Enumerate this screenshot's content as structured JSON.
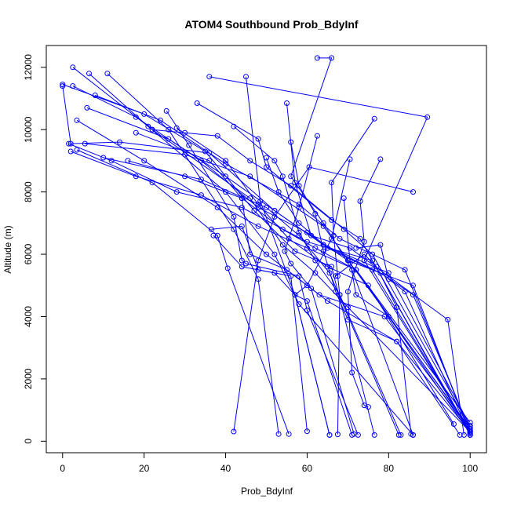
{
  "chart_data": {
    "type": "line",
    "title": "ATOM4 Southbound Prob_BdyInf",
    "xlabel": "Prob_BdyInf",
    "ylabel": "Altitude (m)",
    "xlim": [
      -4,
      104
    ],
    "ylim": [
      -370,
      12700
    ],
    "xticks": [
      0,
      20,
      40,
      60,
      80,
      100
    ],
    "yticks": [
      0,
      2000,
      4000,
      6000,
      8000,
      10000,
      12000
    ],
    "grid": false,
    "colors": {
      "series": "#0000ff",
      "axis": "#000000"
    },
    "series": [
      {
        "values": [
          [
            0,
            11400
          ],
          [
            2,
            9550
          ],
          [
            14,
            9600
          ],
          [
            36,
            9250
          ],
          [
            52,
            7400
          ],
          [
            64,
            6300
          ],
          [
            78,
            5400
          ],
          [
            86,
            4700
          ],
          [
            100,
            350
          ]
        ]
      },
      {
        "values": [
          [
            2.5,
            12000
          ],
          [
            22,
            10000
          ],
          [
            46,
            7800
          ],
          [
            54,
            6300
          ],
          [
            62,
            5400
          ],
          [
            70,
            4300
          ],
          [
            100,
            300
          ]
        ]
      },
      {
        "values": [
          [
            6.5,
            11800
          ],
          [
            21,
            10100
          ],
          [
            40,
            8000
          ],
          [
            52,
            6000
          ],
          [
            58,
            4400
          ],
          [
            86,
            200
          ]
        ]
      },
      {
        "values": [
          [
            11,
            11800
          ],
          [
            26,
            10000
          ],
          [
            42,
            6800
          ],
          [
            48,
            5200
          ],
          [
            53,
            230
          ]
        ]
      },
      {
        "values": [
          [
            3.5,
            10300
          ],
          [
            20,
            9000
          ],
          [
            38,
            7500
          ],
          [
            50,
            6000
          ],
          [
            65,
            4500
          ],
          [
            82,
            3200
          ],
          [
            100,
            300
          ]
        ]
      },
      {
        "values": [
          [
            1.5,
            9550
          ],
          [
            12,
            9000
          ],
          [
            28,
            8000
          ],
          [
            44,
            7500
          ],
          [
            60,
            6400
          ],
          [
            76,
            5800
          ],
          [
            100,
            250
          ]
        ]
      },
      {
        "values": [
          [
            2,
            9300
          ],
          [
            18,
            8500
          ],
          [
            34,
            7900
          ],
          [
            48,
            6900
          ],
          [
            60,
            6200
          ],
          [
            72,
            5500
          ],
          [
            99,
            550
          ]
        ]
      },
      {
        "values": [
          [
            3.5,
            9350
          ],
          [
            22,
            8300
          ],
          [
            38,
            6600
          ],
          [
            40.5,
            5550
          ],
          [
            55.5,
            230
          ]
        ]
      },
      {
        "values": [
          [
            10,
            9100
          ],
          [
            34,
            8400
          ],
          [
            50,
            7500
          ],
          [
            58,
            6600
          ],
          [
            65.5,
            5400
          ],
          [
            82.5,
            200
          ]
        ]
      },
      {
        "values": [
          [
            5.5,
            9550
          ],
          [
            30,
            9200
          ],
          [
            46,
            8500
          ],
          [
            64,
            6900
          ],
          [
            100,
            400
          ]
        ]
      },
      {
        "values": [
          [
            0,
            11450
          ],
          [
            20,
            10500
          ],
          [
            35,
            9300
          ],
          [
            47,
            7400
          ],
          [
            57,
            6100
          ],
          [
            66,
            5600
          ],
          [
            76.5,
            200
          ]
        ]
      },
      {
        "values": [
          [
            36,
            11700
          ],
          [
            89.5,
            10400
          ],
          [
            74,
            5800
          ],
          [
            100,
            300
          ]
        ]
      },
      {
        "values": [
          [
            45,
            11700
          ],
          [
            48.5,
            7700
          ],
          [
            57,
            4700
          ],
          [
            65.5,
            200
          ]
        ]
      },
      {
        "values": [
          [
            62.5,
            12300
          ],
          [
            66,
            12300
          ],
          [
            56,
            8500
          ],
          [
            64,
            7000
          ],
          [
            71,
            5500
          ],
          [
            86,
            200
          ]
        ]
      },
      {
        "values": [
          [
            25.5,
            10600
          ],
          [
            31,
            9500
          ],
          [
            42,
            7200
          ],
          [
            44,
            5800
          ],
          [
            45,
            5700
          ],
          [
            58,
            5300
          ],
          [
            60,
            4200
          ],
          [
            72.5,
            200
          ]
        ]
      },
      {
        "values": [
          [
            33,
            10850
          ],
          [
            48,
            9700
          ],
          [
            50,
            8800
          ],
          [
            66,
            7100
          ],
          [
            73,
            6500
          ],
          [
            100,
            200
          ]
        ]
      },
      {
        "values": [
          [
            42,
            10100
          ],
          [
            52,
            9000
          ],
          [
            54,
            8500
          ],
          [
            58,
            6700
          ],
          [
            62,
            5800
          ],
          [
            68,
            4700
          ],
          [
            83,
            200
          ]
        ]
      },
      {
        "values": [
          [
            55,
            10850
          ],
          [
            57,
            8300
          ],
          [
            61,
            6600
          ],
          [
            70.5,
            6200
          ],
          [
            94.5,
            3900
          ],
          [
            98.5,
            200
          ]
        ]
      },
      {
        "values": [
          [
            62.5,
            9800
          ],
          [
            58,
            7500
          ],
          [
            54.5,
            6100
          ],
          [
            56,
            5700
          ],
          [
            61,
            4900
          ],
          [
            71.5,
            230
          ]
        ]
      },
      {
        "values": [
          [
            76.5,
            10350
          ],
          [
            66,
            8300
          ],
          [
            66.5,
            6600
          ],
          [
            67.5,
            5300
          ],
          [
            68,
            4700
          ],
          [
            67.5,
            220
          ]
        ]
      },
      {
        "values": [
          [
            78,
            9050
          ],
          [
            73,
            7700
          ],
          [
            74,
            6400
          ],
          [
            70,
            4800
          ],
          [
            71,
            2200
          ],
          [
            74,
            1150
          ],
          [
            75,
            1100
          ]
        ]
      },
      {
        "values": [
          [
            70.5,
            9050
          ],
          [
            66,
            6500
          ],
          [
            60,
            5000
          ],
          [
            57,
            4700
          ],
          [
            65.5,
            200
          ]
        ]
      },
      {
        "values": [
          [
            86,
            8000
          ],
          [
            60.5,
            8800
          ],
          [
            52,
            7200
          ],
          [
            48,
            5800
          ],
          [
            42,
            310
          ]
        ]
      },
      {
        "values": [
          [
            18,
            9900
          ],
          [
            36,
            9000
          ],
          [
            44,
            7800
          ],
          [
            46,
            6000
          ],
          [
            55,
            5500
          ],
          [
            63,
            4700
          ],
          [
            79,
            4000
          ],
          [
            100,
            350
          ]
        ]
      },
      {
        "values": [
          [
            28,
            10050
          ],
          [
            40,
            9000
          ],
          [
            48,
            7600
          ],
          [
            55.5,
            6500
          ],
          [
            65,
            5600
          ],
          [
            75,
            5000
          ],
          [
            96,
            550
          ]
        ]
      },
      {
        "values": [
          [
            56,
            9600
          ],
          [
            58,
            8200
          ],
          [
            62,
            7300
          ],
          [
            64,
            6100
          ],
          [
            67,
            4800
          ],
          [
            70,
            3900
          ],
          [
            82,
            3200
          ],
          [
            97.5,
            200
          ]
        ]
      },
      {
        "values": [
          [
            50,
            9100
          ],
          [
            53,
            8000
          ],
          [
            58,
            7000
          ],
          [
            65,
            6200
          ],
          [
            76,
            5500
          ],
          [
            100,
            300
          ]
        ]
      },
      {
        "values": [
          [
            36.5,
            6800
          ],
          [
            44,
            6900
          ],
          [
            48,
            5500
          ],
          [
            56,
            5300
          ],
          [
            60,
            320
          ]
        ]
      },
      {
        "values": [
          [
            37,
            6600
          ],
          [
            44,
            5600
          ],
          [
            52,
            5400
          ],
          [
            57,
            4700
          ],
          [
            60,
            4500
          ],
          [
            71,
            200
          ]
        ]
      },
      {
        "values": [
          [
            22,
            10000
          ],
          [
            30,
            9900
          ],
          [
            38,
            9800
          ],
          [
            46,
            9000
          ],
          [
            56,
            8200
          ],
          [
            69,
            6800
          ],
          [
            76,
            6000
          ],
          [
            100,
            450
          ]
        ]
      },
      {
        "values": [
          [
            16,
            9000
          ],
          [
            30,
            8500
          ],
          [
            44,
            7800
          ],
          [
            54,
            6800
          ],
          [
            62,
            6200
          ],
          [
            72,
            5500
          ],
          [
            100,
            600
          ]
        ]
      },
      {
        "values": [
          [
            2.5,
            11400
          ],
          [
            18,
            10400
          ],
          [
            34,
            9000
          ],
          [
            48,
            7500
          ],
          [
            60,
            6700
          ],
          [
            70,
            5800
          ],
          [
            86,
            5000
          ],
          [
            100,
            200
          ]
        ]
      },
      {
        "values": [
          [
            6,
            10700
          ],
          [
            26,
            9700
          ],
          [
            40,
            8500
          ],
          [
            52,
            7400
          ],
          [
            64,
            6300
          ],
          [
            80,
            5400
          ],
          [
            100,
            500
          ]
        ]
      },
      {
        "values": [
          [
            8,
            11100
          ],
          [
            24,
            10300
          ],
          [
            40,
            8900
          ],
          [
            58,
            7600
          ],
          [
            68,
            6500
          ],
          [
            84,
            5500
          ],
          [
            100,
            300
          ]
        ]
      },
      {
        "values": [
          [
            67,
            5300
          ],
          [
            74,
            6000
          ],
          [
            77,
            5600
          ],
          [
            82,
            4300
          ],
          [
            85.5,
            230
          ]
        ]
      },
      {
        "values": [
          [
            69,
            7800
          ],
          [
            70.5,
            5800
          ],
          [
            72,
            4700
          ],
          [
            80,
            4000
          ],
          [
            100,
            250
          ]
        ]
      },
      {
        "values": [
          [
            72,
            6200
          ],
          [
            78,
            6300
          ],
          [
            80,
            5200
          ],
          [
            84,
            4800
          ],
          [
            100,
            200
          ]
        ]
      }
    ]
  }
}
